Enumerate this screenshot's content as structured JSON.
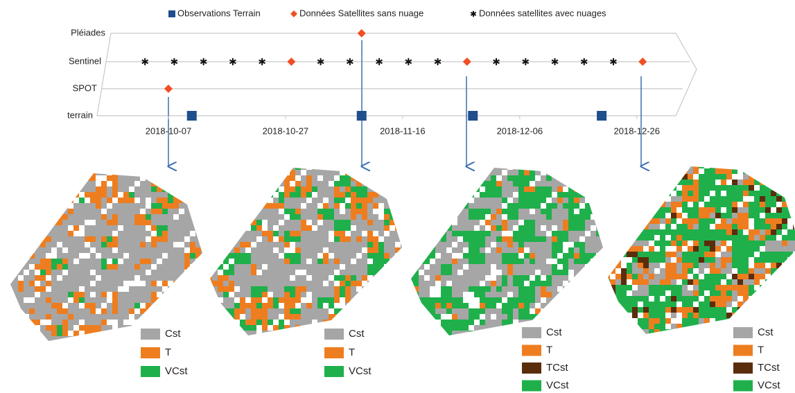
{
  "chart_data": {
    "type": "timeline",
    "rows": [
      "Pléiades",
      "Sentinel",
      "SPOT",
      "terrain"
    ],
    "xlim": [
      "2018-09-25",
      "2018-12-31"
    ],
    "xticks": [
      "2018-10-07",
      "2018-10-27",
      "2018-11-16",
      "2018-12-06",
      "2018-12-26"
    ],
    "series": [
      {
        "name": "Observations Terrain",
        "color": "#1f4e8c",
        "marker": "square",
        "x": [
          "2018-10-11",
          "2018-11-09",
          "2018-11-28",
          "2018-12-20"
        ],
        "rows": [
          "terrain",
          "terrain",
          "terrain",
          "terrain"
        ]
      },
      {
        "name": "Données Satellites sans nuage",
        "color": "#f04e23",
        "marker": "diamond",
        "x": [
          "2018-11-09",
          "2018-10-28",
          "2018-11-27",
          "2018-12-27",
          "2018-10-07"
        ],
        "rows": [
          "Pléiades",
          "Sentinel",
          "Sentinel",
          "Sentinel",
          "SPOT"
        ]
      },
      {
        "name": "Données satellites avec nuages",
        "color": "#111111",
        "marker": "star",
        "x": [
          "2018-10-03",
          "2018-10-08",
          "2018-10-13",
          "2018-10-18",
          "2018-10-23",
          "2018-11-02",
          "2018-11-07",
          "2018-11-12",
          "2018-11-17",
          "2018-11-22",
          "2018-12-02",
          "2018-12-07",
          "2018-12-12",
          "2018-12-17",
          "2018-12-22"
        ],
        "rows": [
          "Sentinel",
          "Sentinel",
          "Sentinel",
          "Sentinel",
          "Sentinel",
          "Sentinel",
          "Sentinel",
          "Sentinel",
          "Sentinel",
          "Sentinel",
          "Sentinel",
          "Sentinel",
          "Sentinel",
          "Sentinel",
          "Sentinel"
        ]
      }
    ],
    "maps": [
      {
        "legend": [
          {
            "name": "Cst",
            "color": "#a6a6a6"
          },
          {
            "name": "T",
            "color": "#ee7d1f"
          },
          {
            "name": "VCst",
            "color": "#1fb04b"
          }
        ]
      },
      {
        "legend": [
          {
            "name": "Cst",
            "color": "#a6a6a6"
          },
          {
            "name": "T",
            "color": "#ee7d1f"
          },
          {
            "name": "VCst",
            "color": "#1fb04b"
          }
        ]
      },
      {
        "legend": [
          {
            "name": "Cst",
            "color": "#a6a6a6"
          },
          {
            "name": "T",
            "color": "#ee7d1f"
          },
          {
            "name": "TCst",
            "color": "#5a2d0c"
          },
          {
            "name": "VCst",
            "color": "#1fb04b"
          }
        ]
      },
      {
        "legend": [
          {
            "name": "Cst",
            "color": "#a6a6a6"
          },
          {
            "name": "T",
            "color": "#ee7d1f"
          },
          {
            "name": "TCst",
            "color": "#5a2d0c"
          },
          {
            "name": "VCst",
            "color": "#1fb04b"
          }
        ]
      }
    ]
  }
}
